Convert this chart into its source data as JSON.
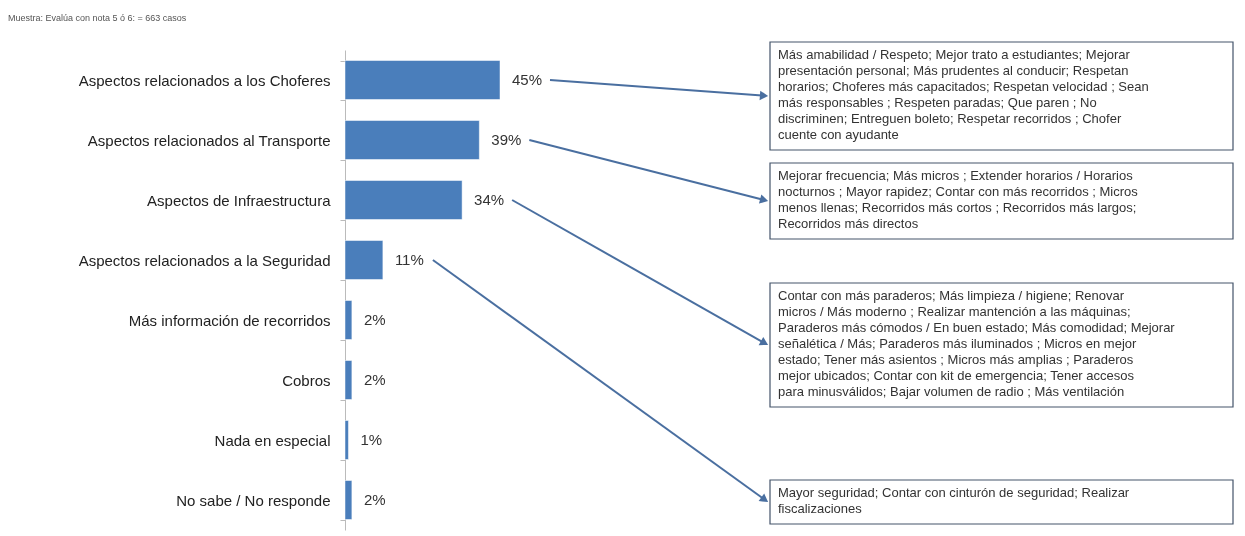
{
  "chart_data": {
    "type": "bar",
    "orientation": "horizontal",
    "categories": [
      "Aspectos relacionados a los Choferes",
      "Aspectos relacionados al Transporte",
      "Aspectos de Infraestructura",
      "Aspectos relacionados a la Seguridad",
      "Más información de recorridos",
      "Cobros",
      "Nada en especial",
      "No sabe / No responde"
    ],
    "values": [
      45,
      39,
      34,
      11,
      2,
      2,
      1,
      2
    ],
    "value_labels": [
      "45%",
      "39%",
      "34%",
      "11%",
      "2%",
      "2%",
      "1%",
      "2%"
    ],
    "color": "#4a7ebb",
    "annotations": [
      "Muestra:  Evalúa con nota 5 ó 6: = 663  casos",
      "Más amabilidad / Respeto; Mejor trato a estudiantes; Mejorar presentación personal; Más prudentes al conducir; Respetan horarios; Choferes más capacitados; Respetan velocidad ; Sean más responsables ; Respeten paradas; Que paren ; No discriminen; Entreguen boleto; Respetar recorridos ; Chofer cuente con ayudante",
      "Mejorar frecuencia; Más micros ; Extender horarios / Horarios nocturnos ; Mayor rapidez; Contar con más recorridos ; Micros menos llenas; Recorridos más cortos ; Recorridos más largos; Recorridos más directos",
      "Contar con más paraderos; Más limpieza / higiene; Renovar micros / Más moderno ; Realizar mantención a las máquinas; Paraderos más cómodos / En buen estado; Más comodidad; Mejorar señalética / Más; Paraderos más iluminados ; Micros en mejor estado; Tener más asientos ; Micros más amplias ; Paraderos mejor ubicados; Contar con kit de emergencia; Tener accesos para minusválidos; Bajar volumen de radio ; Más ventilación",
      "Mayor seguridad; Contar con  cinturón de seguridad; Realizar fiscalizaciones"
    ]
  }
}
